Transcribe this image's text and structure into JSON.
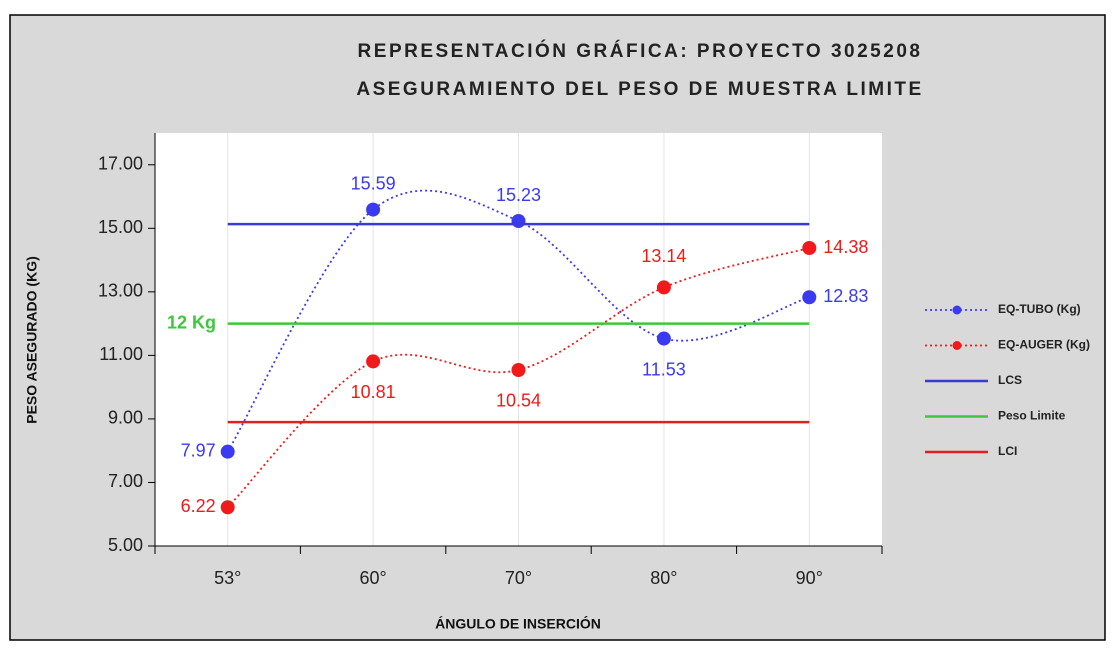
{
  "chart_data": {
    "type": "line",
    "title": "REPRESENTACIÓN GRÁFICA: PROYECTO 3025208",
    "subtitle": "ASEGURAMIENTO DEL PESO DE MUESTRA LIMITE",
    "x_label": "ÁNGULO DE INSERCIÓN",
    "y_label": "PESO ASEGURADO (KG)",
    "categories": [
      "53°",
      "60°",
      "70°",
      "80°",
      "90°"
    ],
    "ylim": [
      5,
      18
    ],
    "yticks": [
      {
        "value": 5,
        "label": "5.00"
      },
      {
        "value": 7,
        "label": "7.00"
      },
      {
        "value": 9,
        "label": "9.00"
      },
      {
        "value": 11,
        "label": "11.00"
      },
      {
        "value": 13,
        "label": "13.00"
      },
      {
        "value": 15,
        "label": "15.00"
      },
      {
        "value": 17,
        "label": "17.00"
      }
    ],
    "xgrid": true,
    "legend": "right",
    "annotation": {
      "text": "12 Kg",
      "value": 12
    },
    "series": [
      {
        "name": "EQ-TUBO (Kg)",
        "color": "#3a3af0",
        "style": "dotted-markers",
        "values": [
          7.97,
          15.59,
          15.23,
          11.53,
          12.83
        ]
      },
      {
        "name": "EQ-AUGER (Kg)",
        "color": "#f01a1a",
        "style": "dotted-markers",
        "values": [
          6.22,
          10.81,
          10.54,
          13.14,
          14.38
        ]
      },
      {
        "name": "LCS",
        "color": "#3a3ad8",
        "style": "solid",
        "values": [
          15.13,
          15.13,
          15.13,
          15.13,
          15.13
        ]
      },
      {
        "name": "Peso Limite",
        "color": "#3cc83c",
        "style": "solid",
        "values": [
          12,
          12,
          12,
          12,
          12
        ]
      },
      {
        "name": "LCI",
        "color": "#e02020",
        "style": "solid",
        "values": [
          8.9,
          8.9,
          8.9,
          8.9,
          8.9
        ]
      }
    ]
  }
}
